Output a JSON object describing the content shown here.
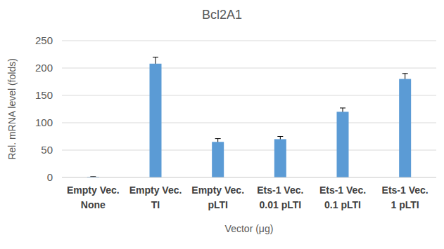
{
  "chart_data": {
    "type": "bar",
    "title": "Bcl2A1",
    "x_label": "Vector (μg)",
    "y_label": "Rel. mRNA level (folds)",
    "categories": [
      "Empty Vec.\nNone",
      "Empty Vec.\nTI",
      "Empty Vec.\npLTI",
      "Ets-1 Vec.\n0.01 pLTI",
      "Ets-1 Vec.\n0.1 pLTI",
      "Ets-1 Vec.\n1 pLTI"
    ],
    "values": [
      1,
      208,
      65,
      70,
      120,
      180
    ],
    "errors": [
      0.5,
      12,
      6,
      5,
      7,
      10
    ],
    "color": "#5b9bd5",
    "ylim": [
      0,
      250
    ],
    "yticks": [
      0,
      50,
      100,
      150,
      200,
      250
    ],
    "grid": true
  }
}
